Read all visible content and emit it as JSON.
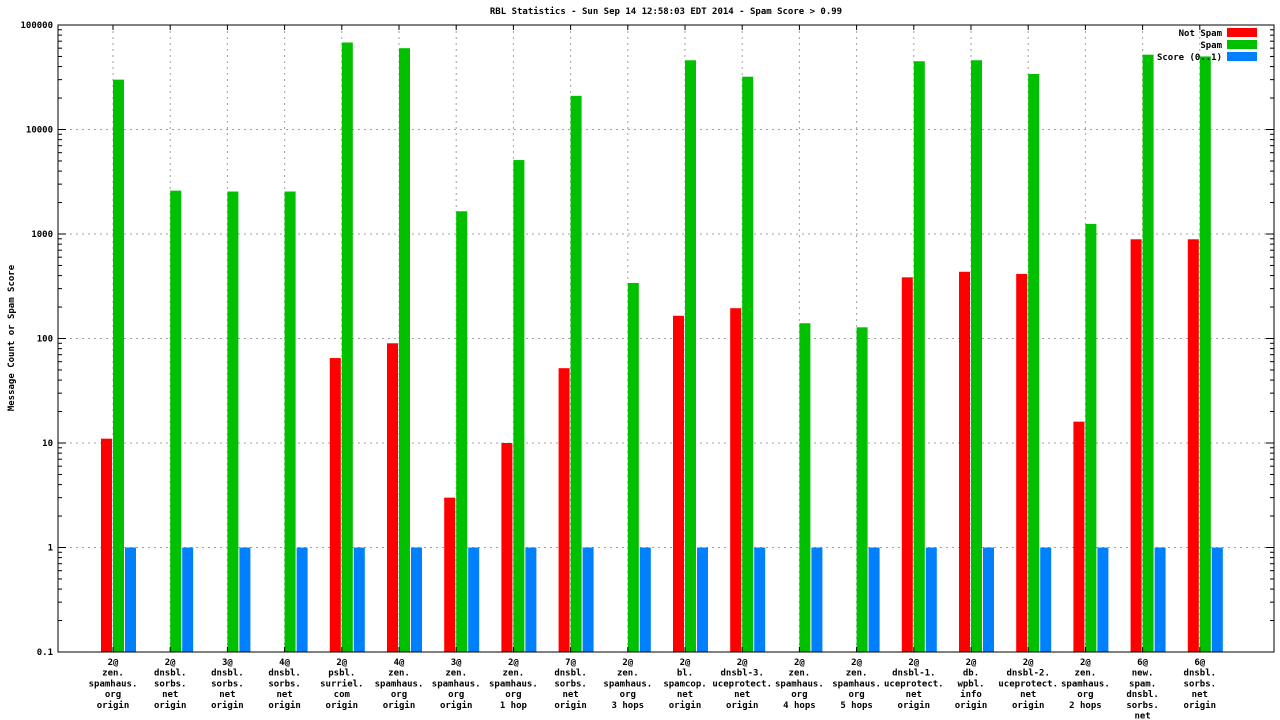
{
  "chart_data": {
    "type": "bar",
    "title": "RBL Statistics - Sun Sep 14 12:58:03 EDT 2014 - Spam Score > 0.99",
    "ylabel": "Message Count or Spam Score",
    "xlabel": "",
    "y_scale": "log",
    "ylim": [
      0.1,
      100000
    ],
    "y_ticks": [
      {
        "value": 100000,
        "label": "100000"
      },
      {
        "value": 10000,
        "label": "10000"
      },
      {
        "value": 1000,
        "label": "1000"
      },
      {
        "value": 100,
        "label": "100"
      },
      {
        "value": 10,
        "label": "10"
      },
      {
        "value": 1,
        "label": "1"
      },
      {
        "value": 0.1,
        "label": "0.1"
      }
    ],
    "grid": true,
    "legend_position": "top-right-inside",
    "categories": [
      [
        "2@",
        "zen.",
        "spamhaus.",
        "org",
        "origin"
      ],
      [
        "2@",
        "dnsbl.",
        "sorbs.",
        "net",
        "origin"
      ],
      [
        "3@",
        "dnsbl.",
        "sorbs.",
        "net",
        "origin"
      ],
      [
        "4@",
        "dnsbl.",
        "sorbs.",
        "net",
        "origin"
      ],
      [
        "2@",
        "psbl.",
        "surriel.",
        "com",
        "origin"
      ],
      [
        "4@",
        "zen.",
        "spamhaus.",
        "org",
        "origin"
      ],
      [
        "3@",
        "zen.",
        "spamhaus.",
        "org",
        "origin"
      ],
      [
        "2@",
        "zen.",
        "spamhaus.",
        "org",
        "1 hop"
      ],
      [
        "7@",
        "dnsbl.",
        "sorbs.",
        "net",
        "origin"
      ],
      [
        "2@",
        "zen.",
        "spamhaus.",
        "org",
        "3 hops"
      ],
      [
        "2@",
        "bl.",
        "spamcop.",
        "net",
        "origin"
      ],
      [
        "2@",
        "dnsbl-3.",
        "uceprotect.",
        "net",
        "origin"
      ],
      [
        "2@",
        "zen.",
        "spamhaus.",
        "org",
        "4 hops"
      ],
      [
        "2@",
        "zen.",
        "spamhaus.",
        "org",
        "5 hops"
      ],
      [
        "2@",
        "dnsbl-1.",
        "uceprotect.",
        "net",
        "origin"
      ],
      [
        "2@",
        "db.",
        "wpbl.",
        "info",
        "origin"
      ],
      [
        "2@",
        "dnsbl-2.",
        "uceprotect.",
        "net",
        "origin"
      ],
      [
        "2@",
        "zen.",
        "spamhaus.",
        "org",
        "2 hops"
      ],
      [
        "6@",
        "new.",
        "spam.",
        "dnsbl.",
        "sorbs.",
        "net",
        "origin"
      ],
      [
        "6@",
        "dnsbl.",
        "sorbs.",
        "net",
        "origin"
      ]
    ],
    "series": [
      {
        "name": "Not Spam",
        "color": "#ff0000",
        "values": [
          11,
          0,
          0,
          0,
          65,
          90,
          3,
          10,
          52,
          0,
          165,
          195,
          0,
          0,
          385,
          435,
          415,
          16,
          890,
          890
        ]
      },
      {
        "name": "Spam",
        "color": "#00c000",
        "values": [
          30000,
          2600,
          2550,
          2550,
          68000,
          60000,
          1650,
          5100,
          21000,
          340,
          46000,
          32000,
          140,
          128,
          45000,
          46000,
          34000,
          1250,
          52000,
          50000
        ]
      },
      {
        "name": "Score (0..1)",
        "color": "#0080ff",
        "values": [
          1,
          1,
          1,
          1,
          1,
          1,
          1,
          1,
          1,
          1,
          1,
          1,
          1,
          1,
          1,
          1,
          1,
          1,
          1,
          1
        ]
      }
    ],
    "grid_color": "#a0a0a0",
    "axis_color": "#000000"
  }
}
